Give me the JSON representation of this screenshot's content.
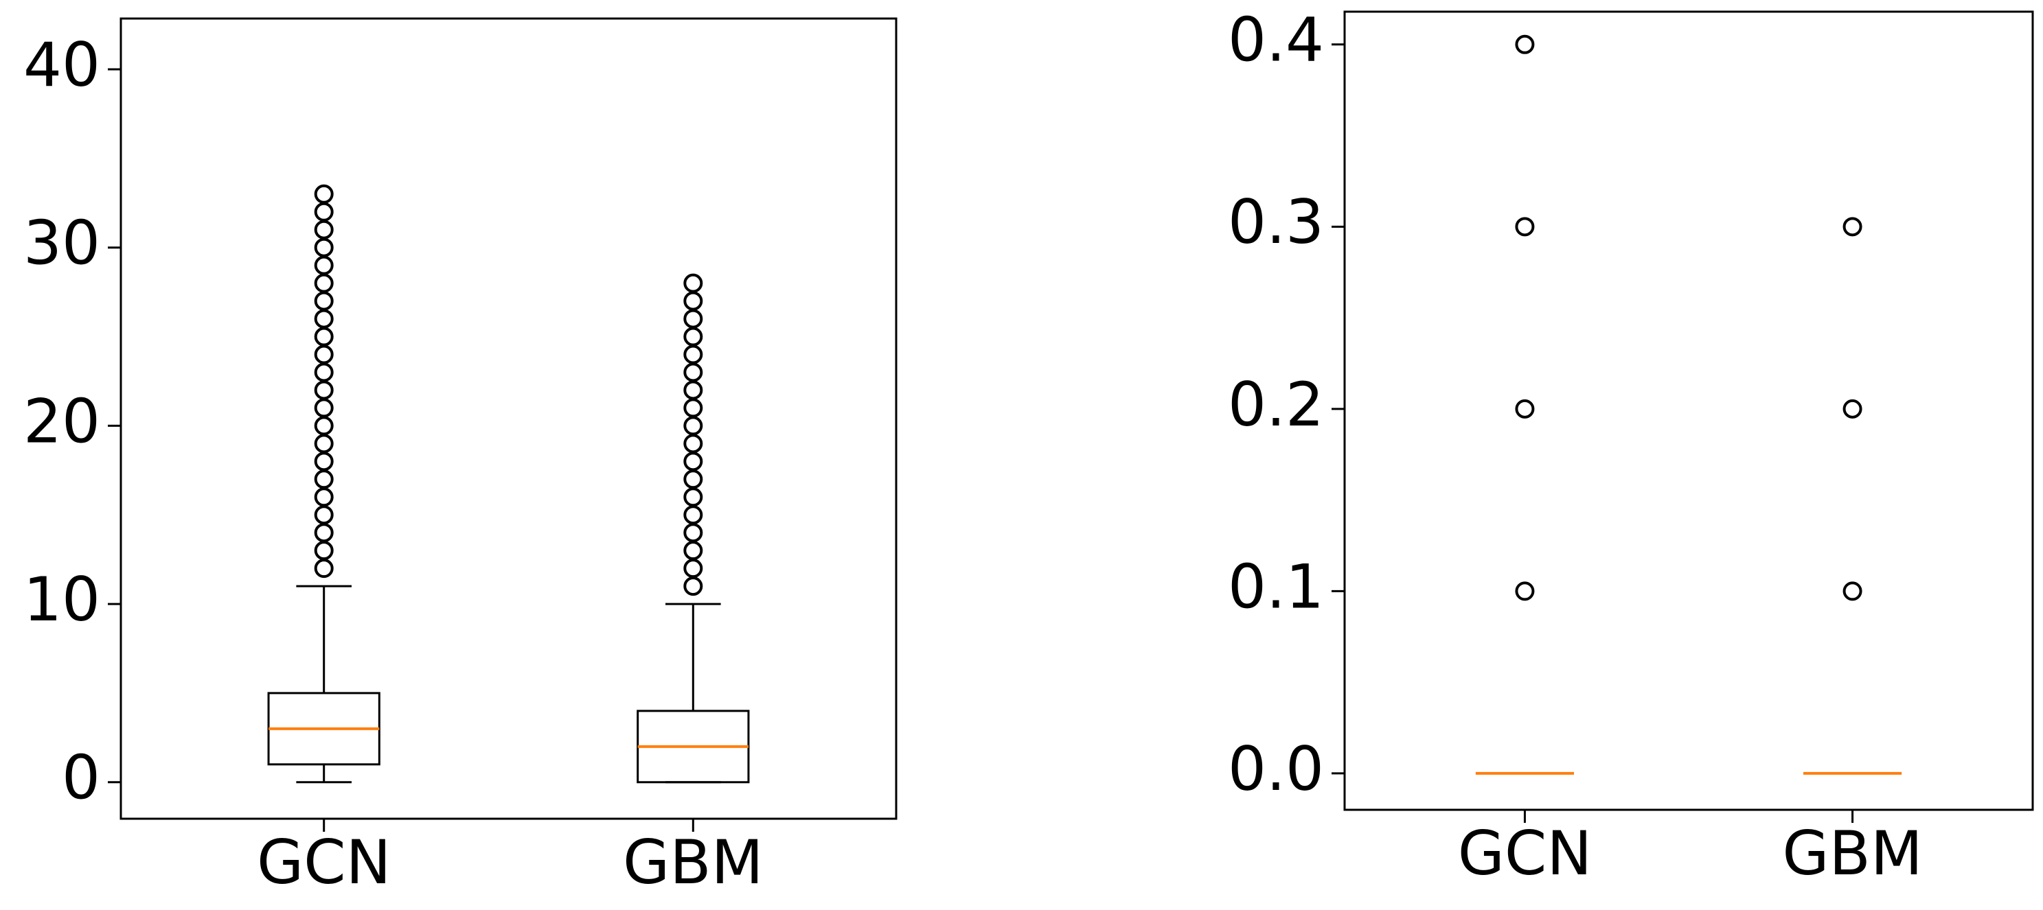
{
  "chart_data": [
    {
      "type": "box",
      "categories": [
        "GCN",
        "GBM"
      ],
      "boxes": [
        {
          "whislo": 0,
          "q1": 1,
          "med": 3,
          "q3": 5,
          "whishi": 11,
          "fliers": [
            12,
            13,
            14,
            15,
            16,
            17,
            18,
            19,
            20,
            21,
            22,
            23,
            24,
            25,
            26,
            27,
            28,
            29,
            30,
            31,
            32,
            33
          ]
        },
        {
          "whislo": 0,
          "q1": 0,
          "med": 2,
          "q3": 4,
          "whishi": 10,
          "fliers": [
            11,
            12,
            13,
            14,
            15,
            16,
            17,
            18,
            19,
            20,
            21,
            22,
            23,
            24,
            25,
            26,
            27,
            28
          ]
        }
      ],
      "box_color": "#000000",
      "median_color": "#ff7f0e",
      "ylim": [
        -2.05,
        42.85
      ],
      "yticks": [
        0,
        10,
        20,
        30,
        40
      ]
    },
    {
      "type": "box",
      "categories": [
        "GCN",
        "GBM"
      ],
      "boxes": [
        {
          "whislo": 0,
          "q1": 0,
          "med": 0,
          "q3": 0,
          "whishi": 0,
          "fliers": [
            0.1,
            0.2,
            0.3,
            0.4
          ]
        },
        {
          "whislo": 0,
          "q1": 0,
          "med": 0,
          "q3": 0,
          "whishi": 0,
          "fliers": [
            0.1,
            0.2,
            0.3
          ]
        }
      ],
      "box_color": "#000000",
      "median_color": "#ff7f0e",
      "ylim": [
        -0.02,
        0.418
      ],
      "yticks": [
        {
          "value": 0,
          "label": "0.0"
        },
        0.1,
        0.2,
        0.3,
        0.4
      ]
    }
  ]
}
